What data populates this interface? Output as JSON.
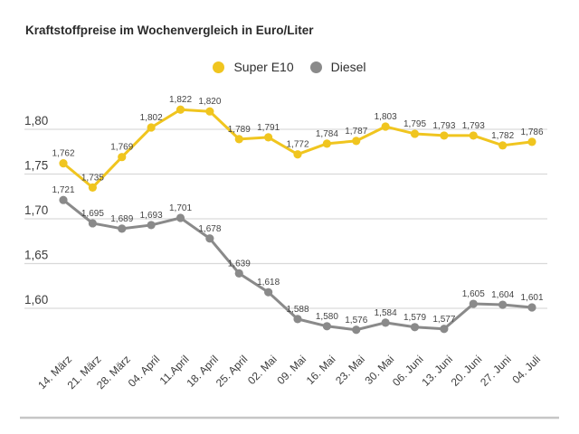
{
  "colors": {
    "super_e10": "#f0c51f",
    "diesel": "#8a8a8a",
    "grid": "#d9d9d9",
    "baseline": "#c6c6c6",
    "axis_text": "#3d3d3d",
    "label_text": "#444444",
    "title_text": "#2b2b2b"
  },
  "chart_data": {
    "type": "line",
    "title": "Kraftstoffpreise im Wochenvergleich in Euro/Liter",
    "categories": [
      "14. März",
      "21. März",
      "28. März",
      "04. April",
      "11.April",
      "18. April",
      "25. April",
      "02. Mai",
      "09. Mai",
      "16. Mai",
      "23. Mai",
      "30. Mai",
      "06. Juni",
      "13. Juni",
      "20. Juni",
      "27. Juni",
      "04. Juli"
    ],
    "series": [
      {
        "name": "Super E10",
        "color_key": "super_e10",
        "values": [
          1.762,
          1.735,
          1.769,
          1.802,
          1.822,
          1.82,
          1.789,
          1.791,
          1.772,
          1.784,
          1.787,
          1.803,
          1.795,
          1.793,
          1.793,
          1.782,
          1.786
        ]
      },
      {
        "name": "Diesel",
        "color_key": "diesel",
        "values": [
          1.721,
          1.695,
          1.689,
          1.693,
          1.701,
          1.678,
          1.639,
          1.618,
          1.588,
          1.58,
          1.576,
          1.584,
          1.579,
          1.577,
          1.605,
          1.604,
          1.601
        ]
      }
    ],
    "y_ticks": [
      1.8,
      1.75,
      1.7,
      1.65,
      1.6
    ],
    "y_tick_labels": [
      "1,80",
      "1,75",
      "1,70",
      "1,65",
      "1,60"
    ],
    "ylim": [
      1.56,
      1.84
    ],
    "grid": true,
    "legend_position": "top-center",
    "number_format": "de-comma-3"
  }
}
